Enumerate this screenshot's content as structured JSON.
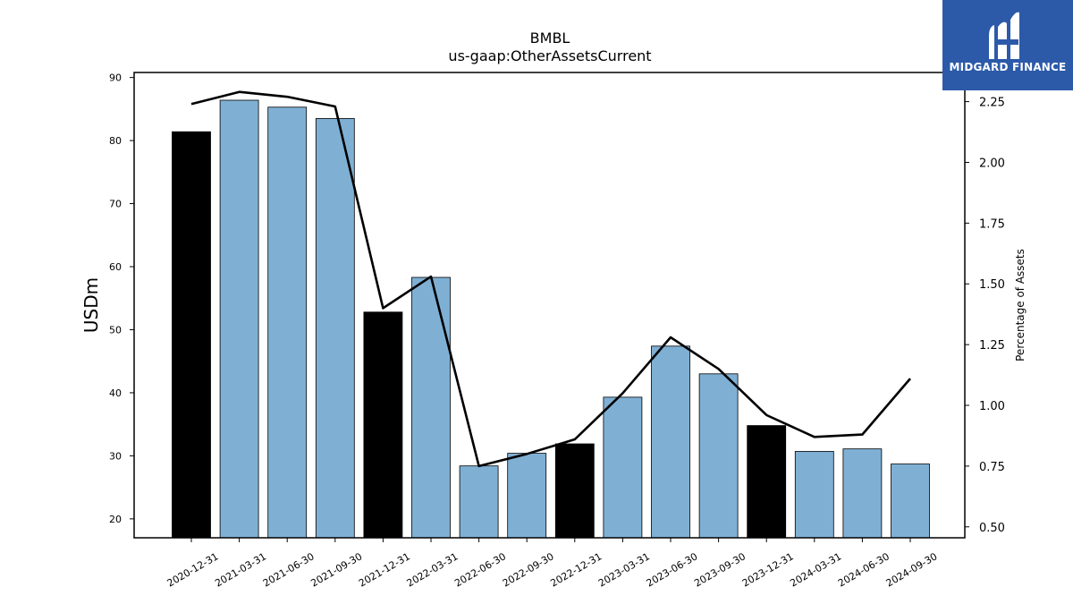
{
  "chart_data": {
    "type": "bar",
    "title": "BMBL",
    "subtitle": "us-gaap:OtherAssetsCurrent",
    "ylabel": "USDm",
    "y2label": "Percentage of Assets",
    "categories": [
      "2020-12-31",
      "2021-03-31",
      "2021-06-30",
      "2021-09-30",
      "2021-12-31",
      "2022-03-31",
      "2022-06-30",
      "2022-09-30",
      "2022-12-31",
      "2023-03-31",
      "2023-06-30",
      "2023-09-30",
      "2023-12-31",
      "2024-03-31",
      "2024-06-30",
      "2024-09-30"
    ],
    "ylim": [
      17,
      90.8
    ],
    "yticks": [
      20,
      30,
      40,
      50,
      60,
      70,
      80,
      90
    ],
    "y2lim": [
      0.455,
      2.37
    ],
    "y2ticks": [
      "0.50",
      "0.75",
      "1.00",
      "1.25",
      "1.50",
      "1.75",
      "2.00",
      "2.25"
    ],
    "series": [
      {
        "type": "bar",
        "values": [
          81.4,
          86.4,
          85.3,
          83.5,
          52.8,
          58.3,
          28.4,
          30.4,
          31.9,
          39.3,
          47.4,
          43.0,
          34.8,
          30.7,
          31.1,
          28.7
        ],
        "colors": [
          "#000000",
          "#7fb0d4",
          "#7fb0d4",
          "#7fb0d4",
          "#000000",
          "#7fb0d4",
          "#7fb0d4",
          "#7fb0d4",
          "#000000",
          "#7fb0d4",
          "#7fb0d4",
          "#7fb0d4",
          "#000000",
          "#7fb0d4",
          "#7fb0d4",
          "#7fb0d4"
        ]
      },
      {
        "type": "line",
        "axis": "right",
        "color": "#000000",
        "values": [
          2.24,
          2.29,
          2.27,
          2.23,
          1.4,
          1.53,
          0.75,
          0.8,
          0.86,
          1.05,
          1.28,
          1.15,
          0.96,
          0.87,
          0.88,
          1.11
        ]
      }
    ],
    "grid": false
  },
  "logo": {
    "text": "MIDGARD FINANCE",
    "background": "#2c5aa9"
  }
}
